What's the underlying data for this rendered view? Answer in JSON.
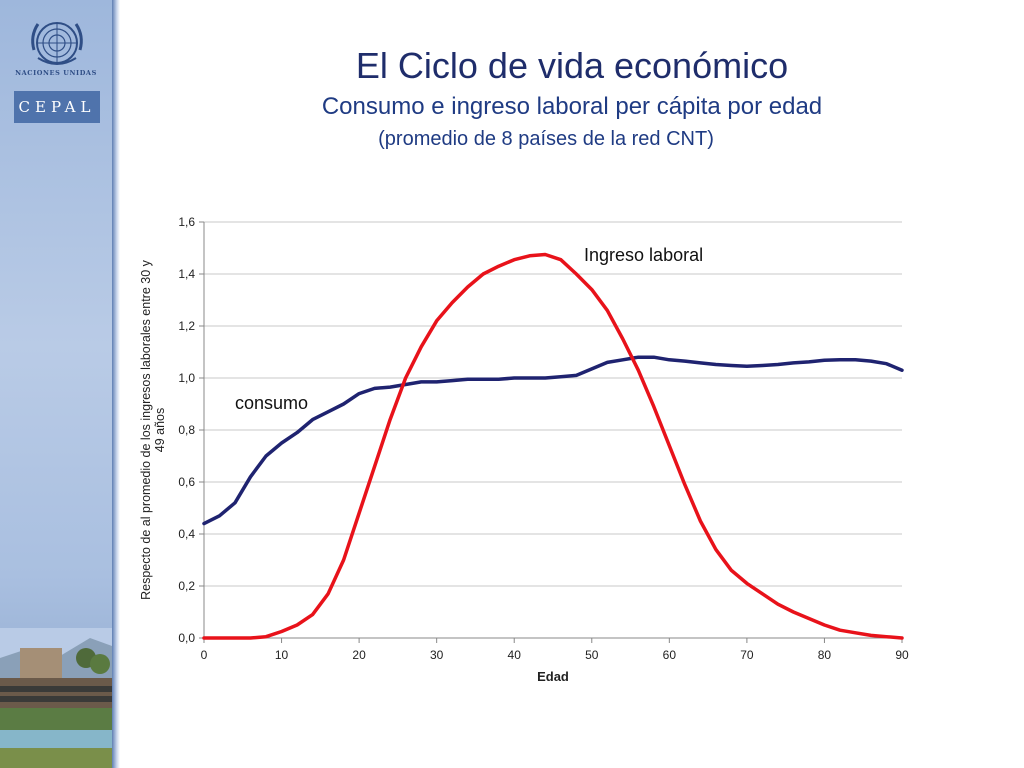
{
  "header": {
    "title": "El Ciclo de vida económico",
    "subtitle": "Consumo e ingreso laboral per cápita por edad",
    "note": "(promedio de 8 países de la red CNT)"
  },
  "sidebar": {
    "logo_text": "NACIONES UNIDAS",
    "brand": "CEPAL",
    "logo_icon": "un-emblem-icon"
  },
  "colors": {
    "title": "#1f2d6b",
    "consumo": "#1f2370",
    "ingreso": "#e8121a",
    "grid": "#c9c9c9"
  },
  "chart_data": {
    "type": "line",
    "xlabel": "Edad",
    "ylabel": "Respecto de al promedio de los ingresos laborales entre 30 y 49 años",
    "xlim": [
      0,
      90
    ],
    "ylim": [
      0,
      1.6
    ],
    "xticks": [
      "0",
      "10",
      "20",
      "30",
      "40",
      "50",
      "60",
      "70",
      "80",
      "90"
    ],
    "yticks": [
      "0,0",
      "0,2",
      "0,4",
      "0,6",
      "0,8",
      "1,0",
      "1,2",
      "1,4",
      "1,6"
    ],
    "grid": true,
    "series": [
      {
        "name": "consumo",
        "x": [
          0,
          2,
          4,
          6,
          8,
          10,
          12,
          14,
          16,
          18,
          20,
          22,
          24,
          26,
          28,
          30,
          32,
          34,
          36,
          38,
          40,
          42,
          44,
          46,
          48,
          50,
          52,
          54,
          56,
          58,
          60,
          62,
          64,
          66,
          68,
          70,
          72,
          74,
          76,
          78,
          80,
          82,
          84,
          86,
          88,
          90
        ],
        "y": [
          0.44,
          0.47,
          0.52,
          0.62,
          0.7,
          0.75,
          0.79,
          0.84,
          0.87,
          0.9,
          0.94,
          0.96,
          0.965,
          0.975,
          0.985,
          0.985,
          0.99,
          0.995,
          0.995,
          0.995,
          1.0,
          1.0,
          1.0,
          1.005,
          1.01,
          1.035,
          1.06,
          1.07,
          1.08,
          1.08,
          1.07,
          1.065,
          1.058,
          1.052,
          1.048,
          1.045,
          1.048,
          1.052,
          1.058,
          1.062,
          1.068,
          1.07,
          1.07,
          1.065,
          1.055,
          1.03
        ]
      },
      {
        "name": "Ingreso laboral",
        "x": [
          0,
          2,
          4,
          6,
          8,
          10,
          12,
          14,
          16,
          18,
          20,
          22,
          24,
          26,
          28,
          30,
          32,
          34,
          36,
          38,
          40,
          42,
          44,
          46,
          48,
          50,
          52,
          54,
          56,
          58,
          60,
          62,
          64,
          66,
          68,
          70,
          72,
          74,
          76,
          78,
          80,
          82,
          84,
          86,
          88,
          90
        ],
        "y": [
          0.0,
          0.0,
          0.0,
          0.0,
          0.005,
          0.025,
          0.05,
          0.09,
          0.17,
          0.3,
          0.48,
          0.66,
          0.84,
          1.0,
          1.12,
          1.22,
          1.29,
          1.35,
          1.4,
          1.43,
          1.455,
          1.47,
          1.475,
          1.455,
          1.4,
          1.34,
          1.26,
          1.15,
          1.03,
          0.89,
          0.74,
          0.59,
          0.45,
          0.34,
          0.26,
          0.21,
          0.17,
          0.13,
          0.1,
          0.075,
          0.05,
          0.03,
          0.02,
          0.01,
          0.005,
          0.0
        ]
      }
    ],
    "annotations": [
      {
        "text": "consumo",
        "x": 4,
        "y": 0.88
      },
      {
        "text": "Ingreso laboral",
        "x": 49,
        "y": 1.45
      }
    ]
  }
}
